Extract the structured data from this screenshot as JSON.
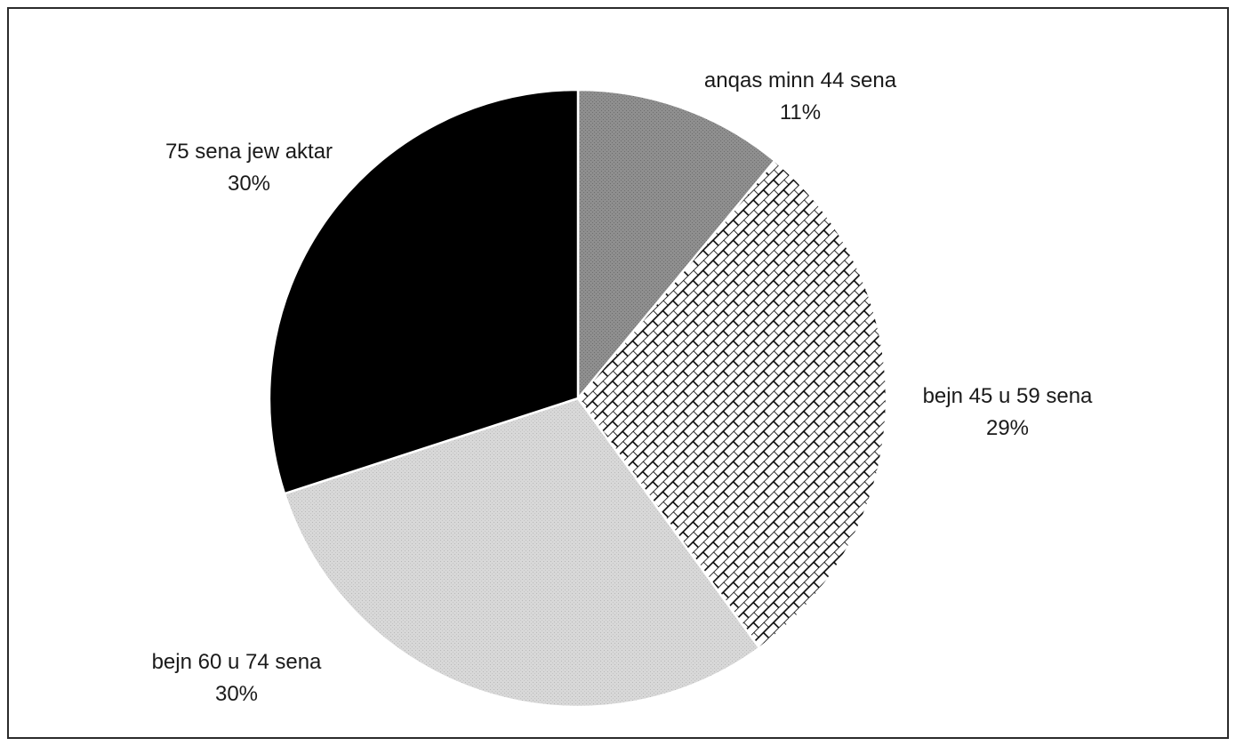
{
  "chart_data": {
    "type": "pie",
    "title": "",
    "slices": [
      {
        "category": "anqas minn 44 sena",
        "value": 11,
        "label": "11%",
        "fill": "dark-gray-dotted",
        "color": "#8f8f8f"
      },
      {
        "category": "bejn 45 u 59 sena",
        "value": 29,
        "label": "29%",
        "fill": "brick-pattern",
        "color": "#ffffff"
      },
      {
        "category": "bejn 60 u 74 sena",
        "value": 30,
        "label": "30%",
        "fill": "light-gray-dotted",
        "color": "#d2d2d2"
      },
      {
        "category": "75 sena jew aktar",
        "value": 30,
        "label": "30%",
        "fill": "solid-black",
        "color": "#000000"
      }
    ],
    "start_angle": "12 o'clock",
    "direction": "clockwise",
    "legend": "none",
    "data_labels": "outside"
  }
}
